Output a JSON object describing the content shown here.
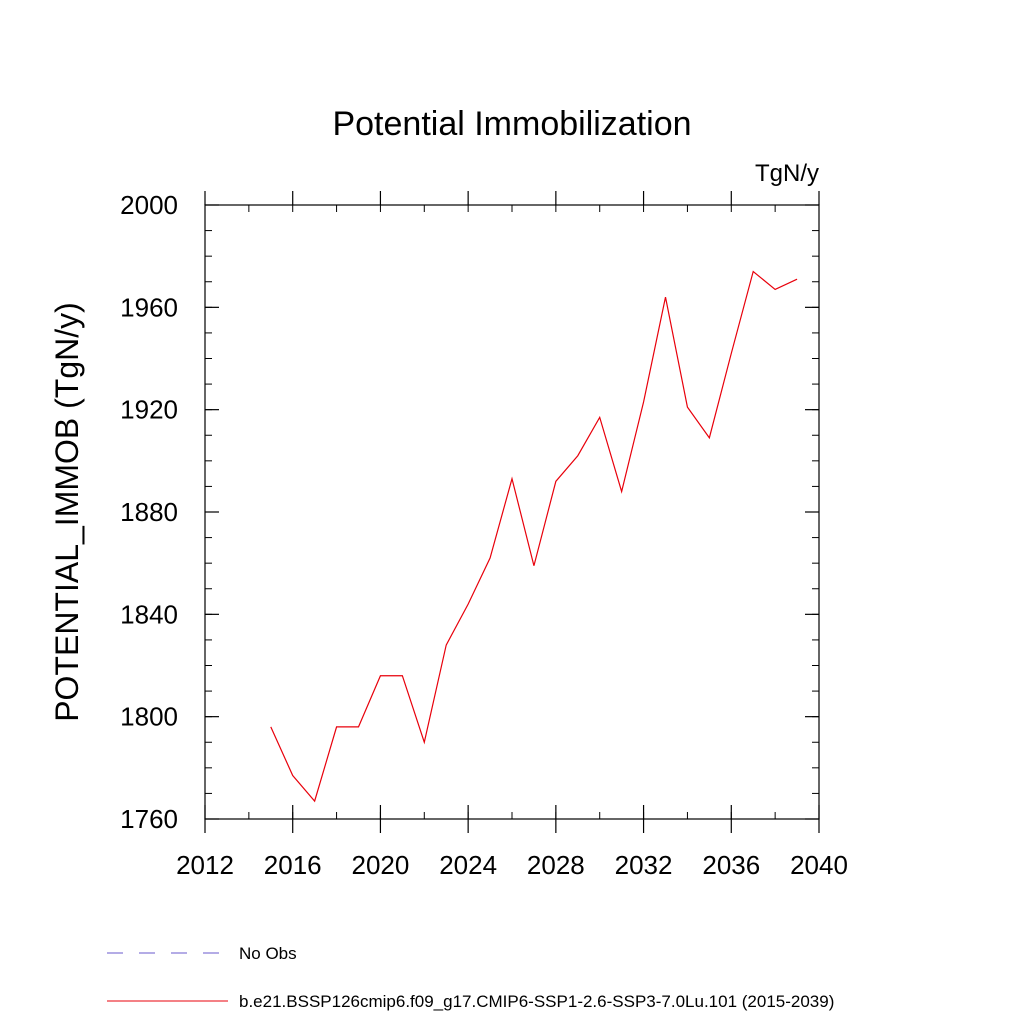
{
  "chart_data": {
    "type": "line",
    "title": "Potential Immobilization",
    "units_label": "TgN/y",
    "ylabel": "POTENTIAL_IMMOB  (TgN/y)",
    "xlabel": "",
    "xlim": [
      2012,
      2040
    ],
    "ylim": [
      1760,
      2000
    ],
    "xticks": [
      2012,
      2016,
      2020,
      2024,
      2028,
      2032,
      2036,
      2040
    ],
    "yticks": [
      1760,
      1800,
      1840,
      1880,
      1920,
      1960,
      2000
    ],
    "grid": false,
    "legend_position": "bottom",
    "x": [
      2015,
      2016,
      2017,
      2018,
      2019,
      2020,
      2021,
      2022,
      2023,
      2024,
      2025,
      2026,
      2027,
      2028,
      2029,
      2030,
      2031,
      2032,
      2033,
      2034,
      2035,
      2036,
      2037,
      2038,
      2039
    ],
    "series": [
      {
        "name": "b.e21.BSSP126cmip6.f09_g17.CMIP6-SSP1-2.6-SSP3-7.0Lu.101 (2015-2039)",
        "color": "#e8000b",
        "style": "solid",
        "values": [
          1796,
          1777,
          1767,
          1796,
          1796,
          1816,
          1816,
          1790,
          1828,
          1844,
          1862,
          1893,
          1859,
          1892,
          1902,
          1917,
          1888,
          1923,
          1964,
          1921,
          1909,
          1942,
          1974,
          1967,
          1971
        ]
      }
    ],
    "legend": [
      {
        "label": "No Obs",
        "color": "#6a5acd",
        "style": "dashed"
      },
      {
        "label": "b.e21.BSSP126cmip6.f09_g17.CMIP6-SSP1-2.6-SSP3-7.0Lu.101 (2015-2039)",
        "color": "#e8000b",
        "style": "solid"
      }
    ]
  }
}
